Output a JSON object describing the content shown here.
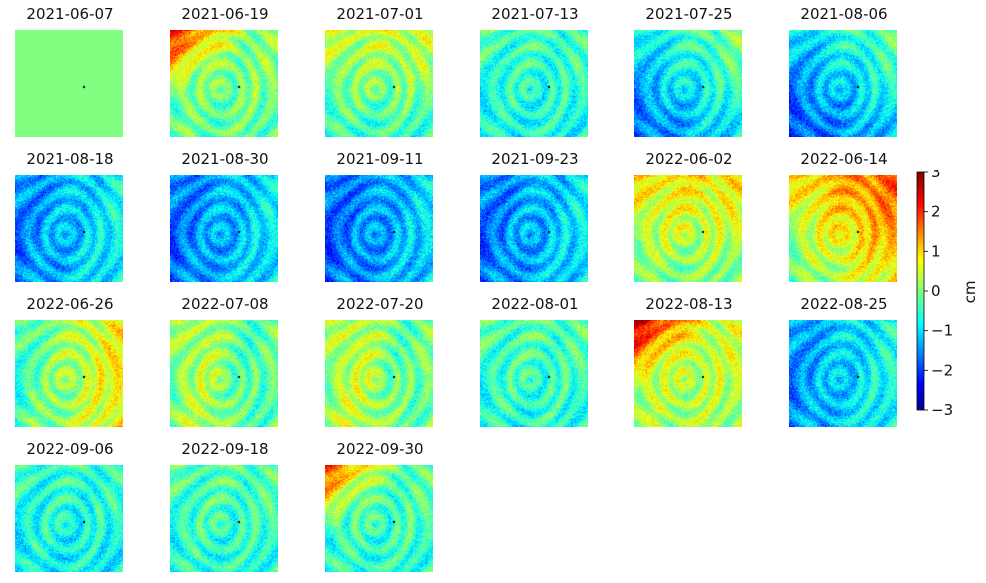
{
  "figure": {
    "panels": [
      {
        "date": "2021-06-07",
        "scene": {
          "ramp": "uniform",
          "base": 0.0
        }
      },
      {
        "date": "2021-06-19",
        "scene": {
          "ramp": "nw-hot",
          "base": 0.1
        }
      },
      {
        "date": "2021-07-01",
        "scene": {
          "ramp": "warm-top",
          "base": 0.0
        }
      },
      {
        "date": "2021-07-13",
        "scene": {
          "ramp": "cool",
          "base": -0.5
        }
      },
      {
        "date": "2021-07-25",
        "scene": {
          "ramp": "cool-sw",
          "base": -0.8
        }
      },
      {
        "date": "2021-08-06",
        "scene": {
          "ramp": "cool-sw",
          "base": -1.0
        }
      },
      {
        "date": "2021-08-18",
        "scene": {
          "ramp": "cool-west",
          "base": -1.1
        }
      },
      {
        "date": "2021-08-30",
        "scene": {
          "ramp": "cool-west",
          "base": -1.2
        }
      },
      {
        "date": "2021-09-11",
        "scene": {
          "ramp": "cool-west",
          "base": -1.3
        }
      },
      {
        "date": "2021-09-23",
        "scene": {
          "ramp": "cool-west",
          "base": -1.2
        }
      },
      {
        "date": "2022-06-02",
        "scene": {
          "ramp": "warm-top",
          "base": 0.4
        }
      },
      {
        "date": "2022-06-14",
        "scene": {
          "ramp": "warm-ne",
          "base": 0.6
        }
      },
      {
        "date": "2022-06-26",
        "scene": {
          "ramp": "warm-east",
          "base": 0.2
        }
      },
      {
        "date": "2022-07-08",
        "scene": {
          "ramp": "mixed",
          "base": 0.0
        }
      },
      {
        "date": "2022-07-20",
        "scene": {
          "ramp": "mixed",
          "base": 0.1
        }
      },
      {
        "date": "2022-08-01",
        "scene": {
          "ramp": "cool",
          "base": -0.4
        }
      },
      {
        "date": "2022-08-13",
        "scene": {
          "ramp": "nw-hot",
          "base": 0.5
        }
      },
      {
        "date": "2022-08-25",
        "scene": {
          "ramp": "cool-west",
          "base": -1.0
        }
      },
      {
        "date": "2022-09-06",
        "scene": {
          "ramp": "cool",
          "base": -0.6
        }
      },
      {
        "date": "2022-09-18",
        "scene": {
          "ramp": "cool",
          "base": -0.4
        }
      },
      {
        "date": "2022-09-30",
        "scene": {
          "ramp": "nw-hot",
          "base": -0.2
        }
      }
    ]
  },
  "colorbar": {
    "colormap": "jet",
    "min": -3,
    "max": 3,
    "ticks": [
      "3",
      "2",
      "1",
      "0",
      "−1",
      "−2",
      "−3"
    ],
    "unit": "cm"
  },
  "reference_marker_color": "#000000"
}
